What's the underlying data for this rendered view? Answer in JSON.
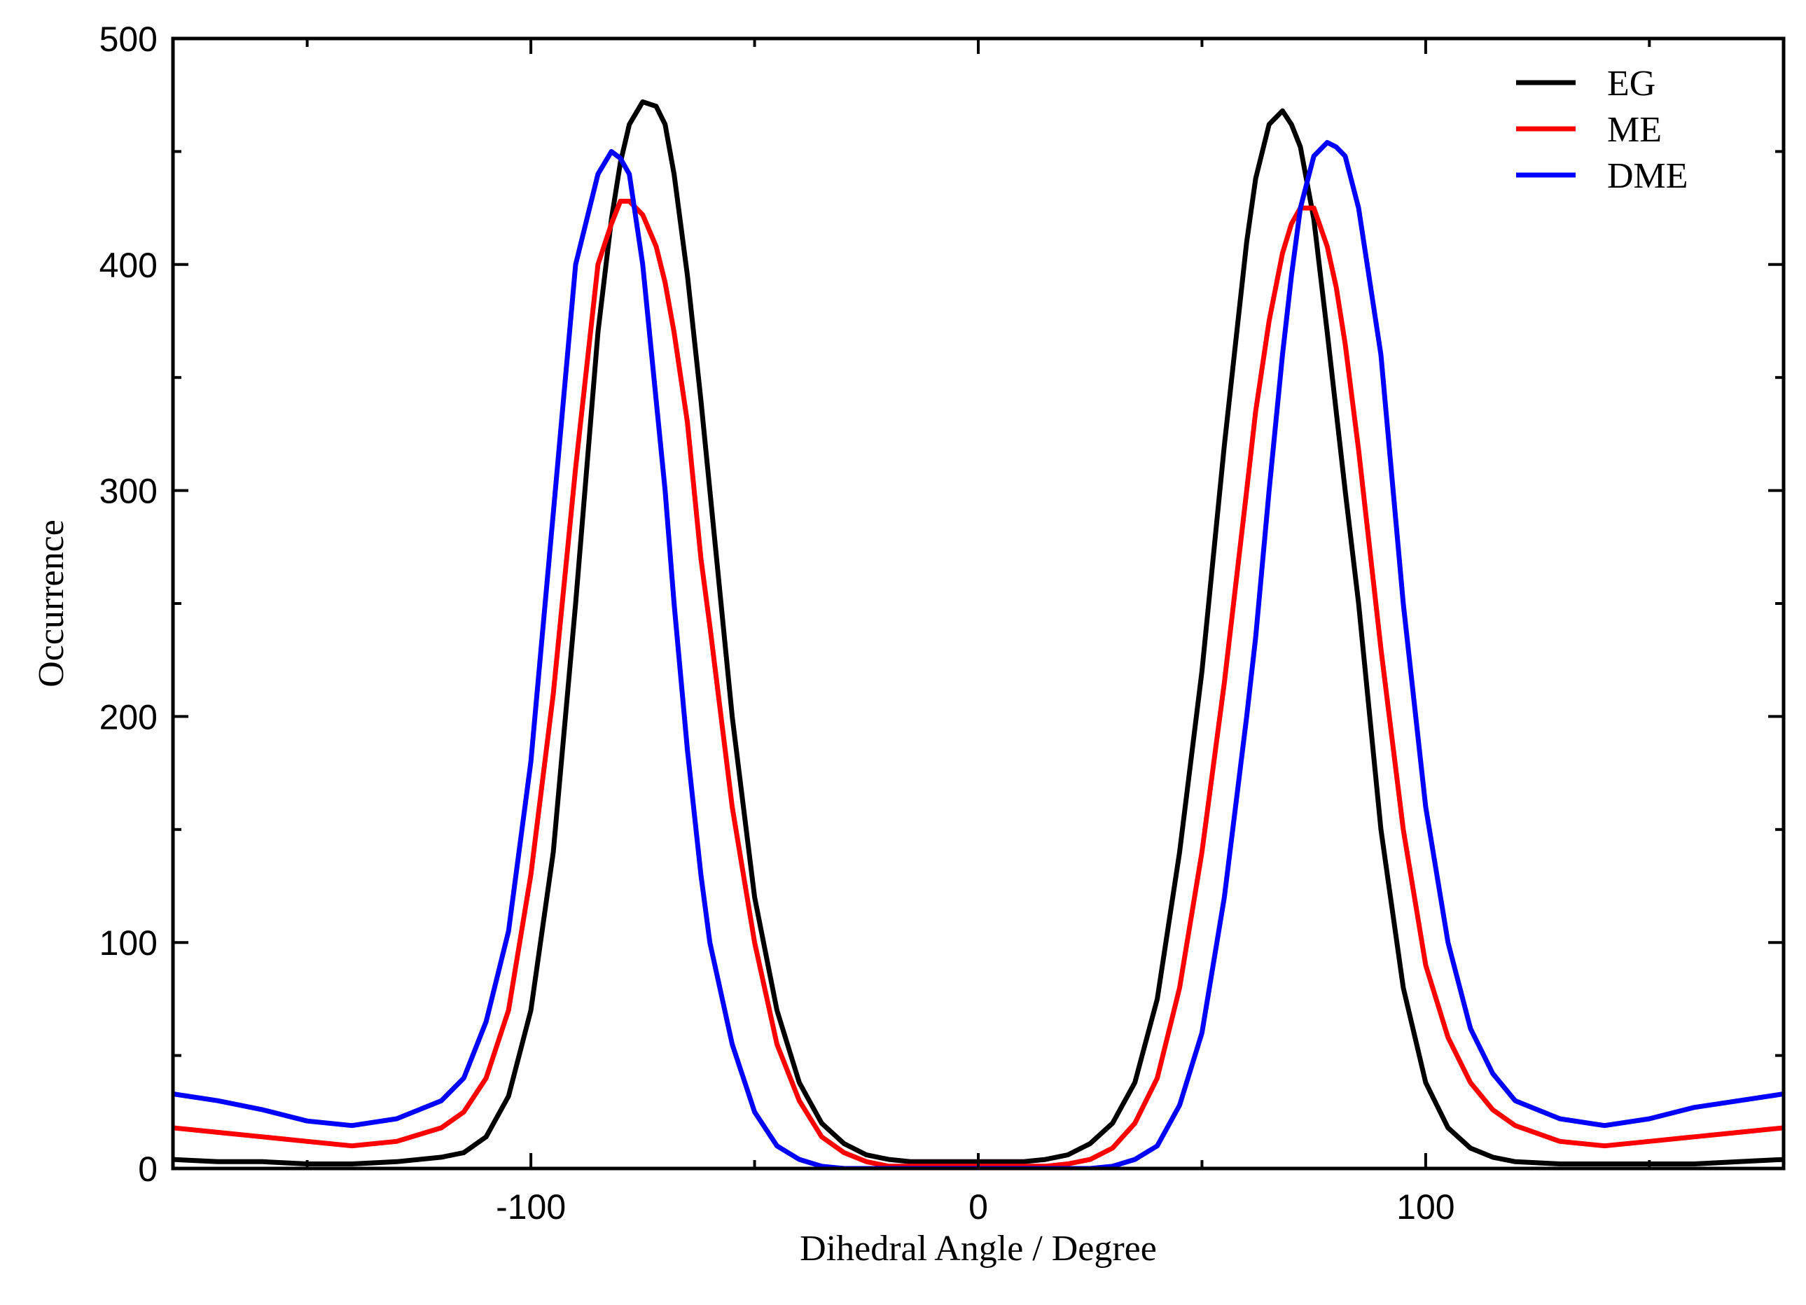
{
  "chart_data": {
    "type": "line",
    "title": "",
    "xlabel": "Dihedral Angle / Degree",
    "ylabel": "Occurrence",
    "xlim": [
      -180,
      180
    ],
    "ylim": [
      0,
      500
    ],
    "grid": false,
    "legend_position": "top-right",
    "x_ticks": [
      -100,
      0,
      100
    ],
    "x_tick_labels": [
      "-100",
      "0",
      "100"
    ],
    "x_minor_ticks": [
      -150,
      -50,
      50,
      150
    ],
    "y_ticks": [
      0,
      100,
      200,
      300,
      400,
      500
    ],
    "y_tick_labels": [
      "0",
      "100",
      "200",
      "300",
      "400",
      "500"
    ],
    "y_minor_ticks": [
      50,
      150,
      250,
      350,
      450
    ],
    "x": [
      -180,
      -170,
      -160,
      -150,
      -140,
      -130,
      -120,
      -115,
      -110,
      -105,
      -100,
      -95,
      -90,
      -85,
      -82,
      -80,
      -78,
      -75,
      -72,
      -70,
      -68,
      -65,
      -62,
      -60,
      -55,
      -50,
      -45,
      -40,
      -35,
      -30,
      -25,
      -20,
      -15,
      -10,
      -5,
      0,
      5,
      10,
      15,
      20,
      25,
      30,
      35,
      40,
      45,
      50,
      55,
      60,
      62,
      65,
      68,
      70,
      72,
      75,
      78,
      80,
      82,
      85,
      90,
      95,
      100,
      105,
      110,
      115,
      120,
      130,
      140,
      150,
      160,
      170,
      180
    ],
    "series": [
      {
        "name": "EG",
        "color": "#000000",
        "values": [
          4,
          3,
          3,
          2,
          2,
          3,
          5,
          7,
          14,
          32,
          70,
          140,
          250,
          370,
          420,
          445,
          462,
          472,
          470,
          462,
          440,
          395,
          340,
          300,
          200,
          120,
          70,
          38,
          20,
          11,
          6,
          4,
          3,
          3,
          3,
          3,
          3,
          3,
          4,
          6,
          11,
          20,
          38,
          75,
          140,
          220,
          320,
          410,
          438,
          462,
          468,
          462,
          452,
          420,
          370,
          335,
          300,
          250,
          150,
          80,
          38,
          18,
          9,
          5,
          3,
          2,
          2,
          2,
          2,
          3,
          4
        ]
      },
      {
        "name": "ME",
        "color": "#ff0000",
        "values": [
          18,
          16,
          14,
          12,
          10,
          12,
          18,
          25,
          40,
          70,
          130,
          210,
          310,
          400,
          418,
          428,
          428,
          422,
          408,
          392,
          370,
          330,
          270,
          240,
          160,
          100,
          55,
          30,
          14,
          7,
          3,
          1,
          1,
          1,
          1,
          1,
          1,
          1,
          1,
          2,
          4,
          9,
          20,
          40,
          80,
          140,
          215,
          300,
          335,
          375,
          405,
          418,
          425,
          425,
          408,
          390,
          365,
          318,
          230,
          150,
          90,
          58,
          38,
          26,
          19,
          12,
          10,
          12,
          14,
          16,
          18
        ]
      },
      {
        "name": "DME",
        "color": "#0000ff",
        "values": [
          33,
          30,
          26,
          21,
          19,
          22,
          30,
          40,
          65,
          105,
          180,
          290,
          400,
          440,
          450,
          447,
          440,
          400,
          340,
          300,
          250,
          185,
          130,
          100,
          55,
          25,
          10,
          4,
          1,
          0,
          0,
          0,
          0,
          0,
          0,
          0,
          0,
          0,
          0,
          0,
          0,
          1,
          4,
          10,
          28,
          60,
          120,
          200,
          235,
          300,
          360,
          395,
          425,
          448,
          454,
          452,
          448,
          425,
          360,
          250,
          160,
          100,
          62,
          42,
          30,
          22,
          19,
          22,
          27,
          30,
          33
        ]
      }
    ]
  }
}
